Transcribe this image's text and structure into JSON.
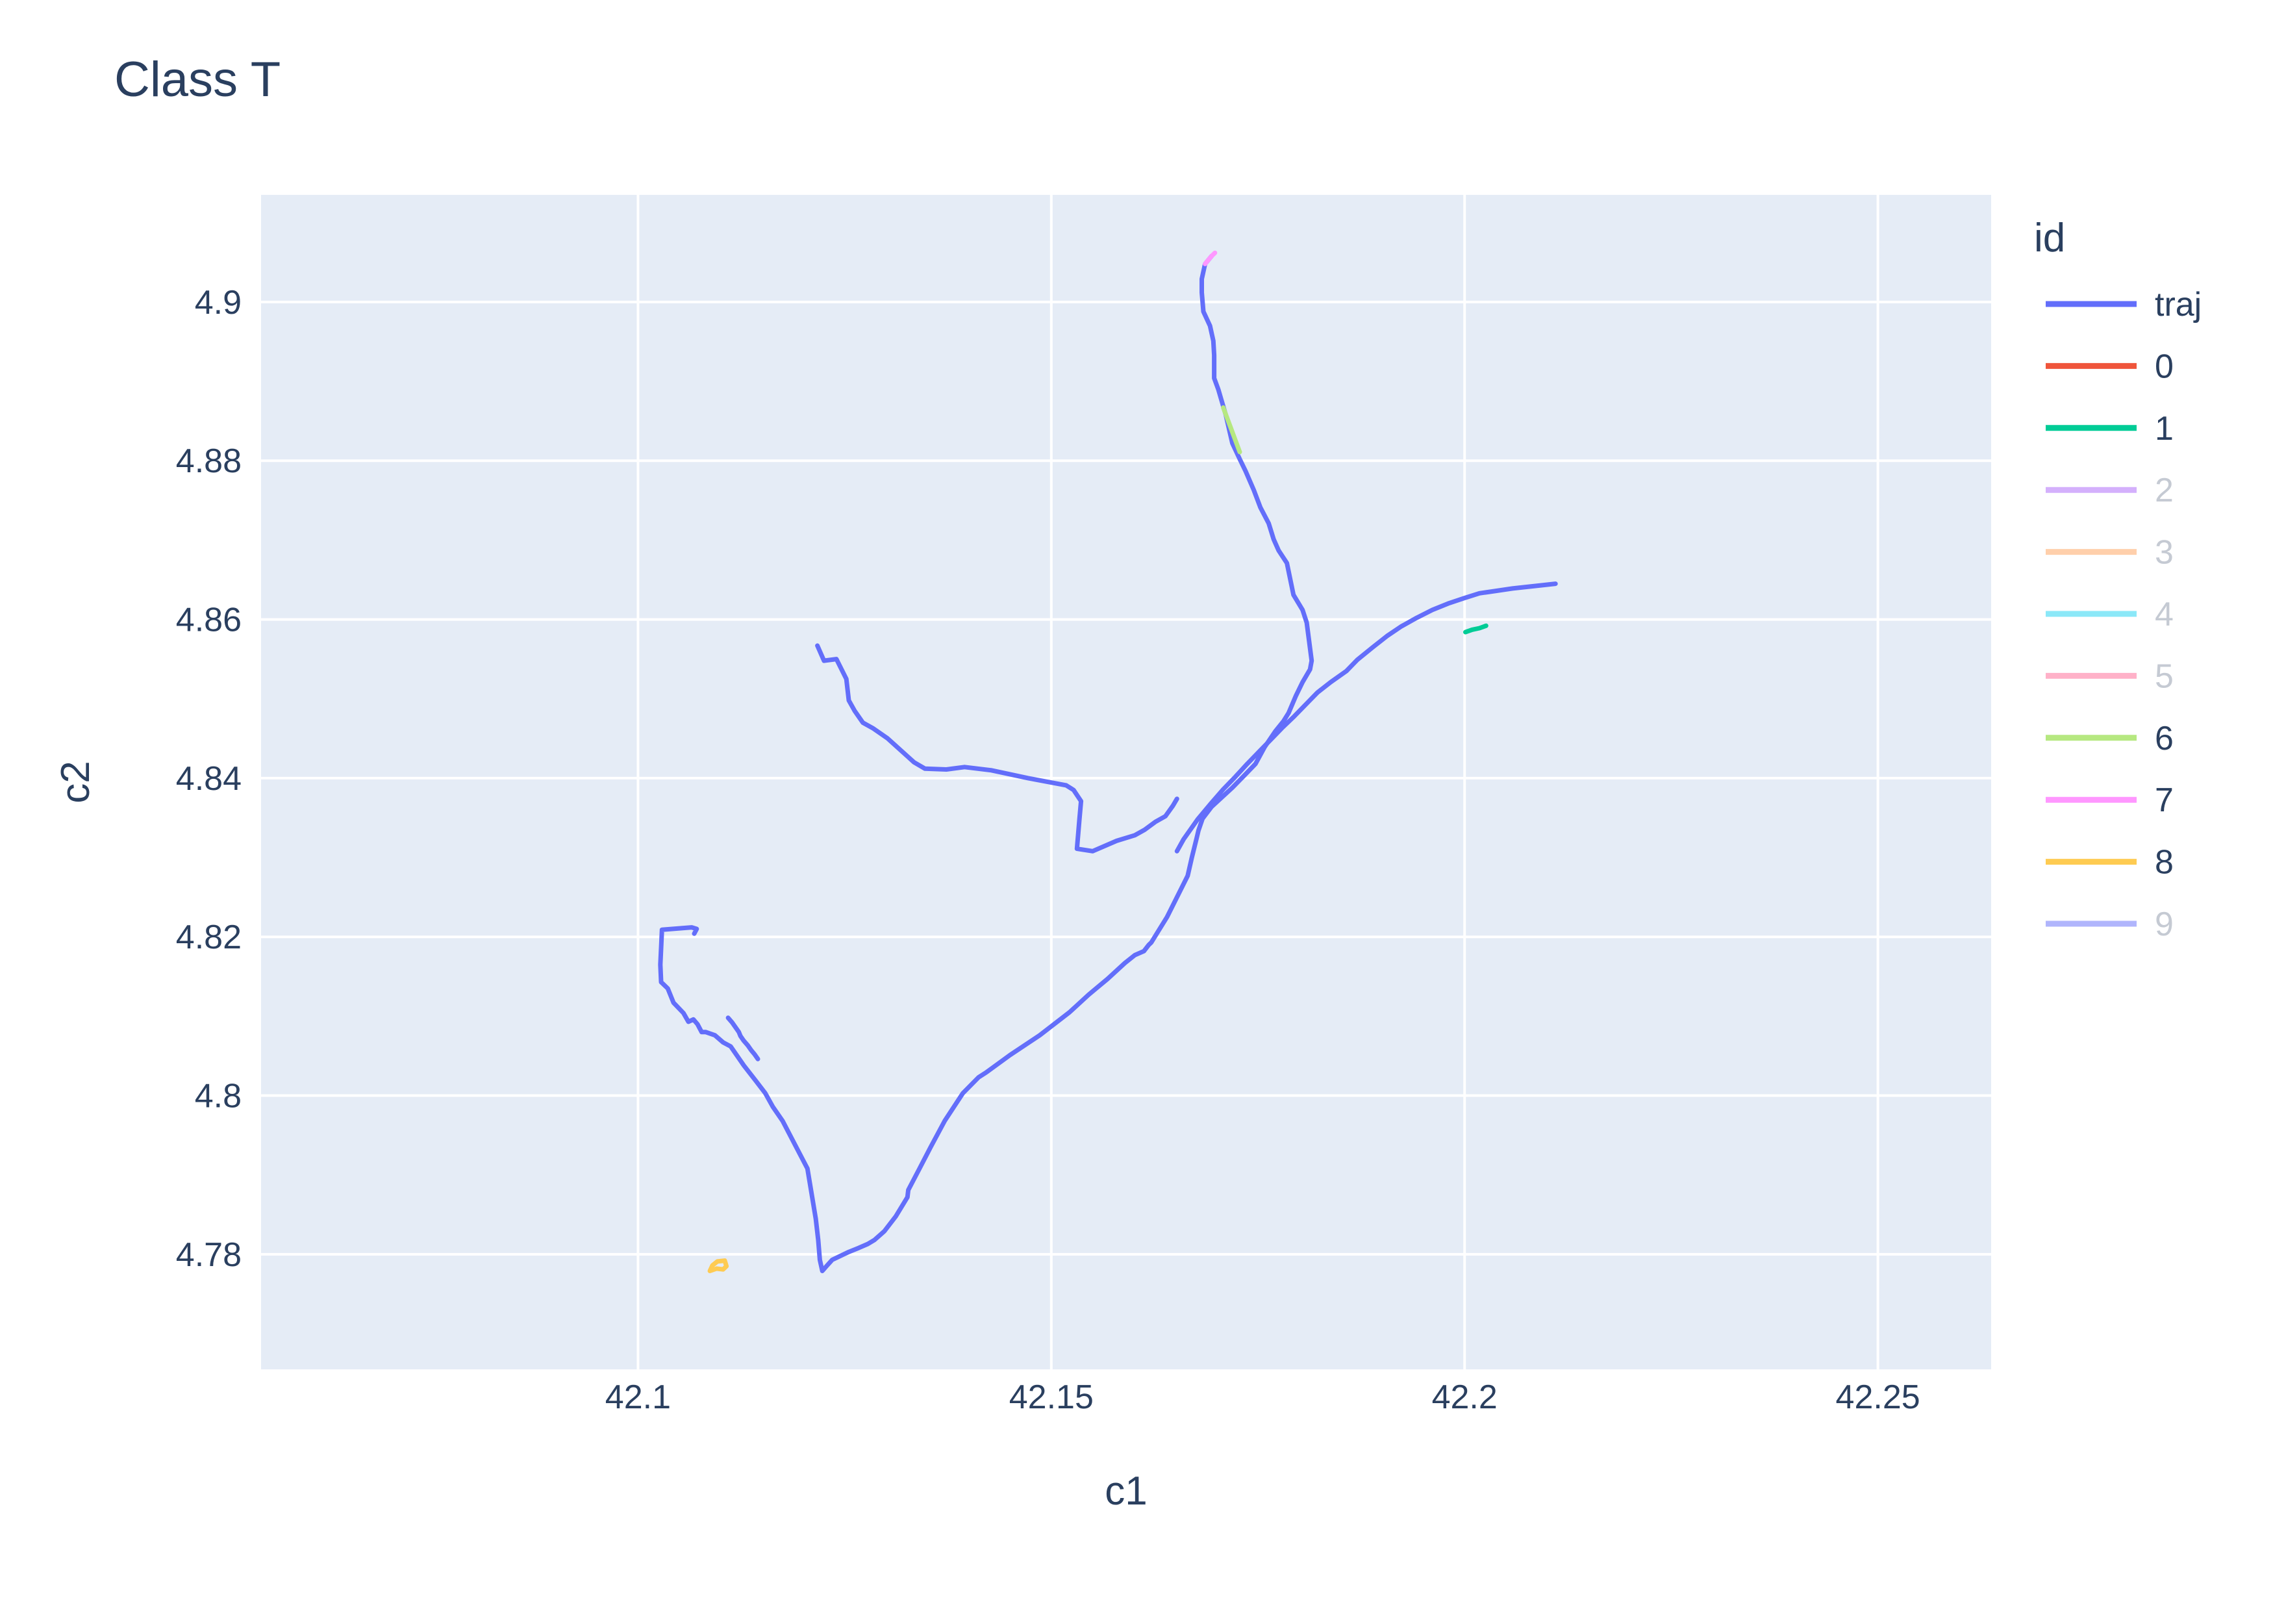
{
  "chart_data": {
    "type": "line",
    "title": "Class T",
    "xlabel": "c1",
    "ylabel": "c2",
    "xlim": [
      42.0544,
      42.2637
    ],
    "ylim": [
      4.7655,
      4.9135
    ],
    "x_ticks": [
      42.1,
      42.15,
      42.2,
      42.25
    ],
    "x_tick_labels": [
      "42.1",
      "42.15",
      "42.2",
      "42.25"
    ],
    "y_ticks": [
      4.78,
      4.8,
      4.82,
      4.84,
      4.86,
      4.88,
      4.9
    ],
    "y_tick_labels": [
      "4.78",
      "4.8",
      "4.82",
      "4.84",
      "4.86",
      "4.88",
      "4.9"
    ],
    "grid": true,
    "plot_bgcolor": "#E5ECF6",
    "legend": {
      "title": "id",
      "placement": "right"
    },
    "series": [
      {
        "name": "traj",
        "color": "#636EFA",
        "visible": true,
        "x": [
          42.1694,
          42.1686,
          42.1682,
          42.1682,
          42.1684,
          42.1692,
          42.1696,
          42.1697,
          42.1697,
          42.1702,
          42.1711,
          42.1719,
          42.1728,
          42.1735,
          42.1745,
          42.1753,
          42.1763,
          42.1769,
          42.1775,
          42.1785,
          42.1793,
          42.1804,
          42.1809,
          42.1815,
          42.1813,
          42.1804,
          42.1796,
          42.1787,
          42.1781,
          42.1771,
          42.1758,
          42.1747,
          42.1735,
          42.1719,
          42.1694,
          42.1683,
          42.1678,
          42.1676,
          42.167,
          42.1665,
          42.164,
          42.1621,
          42.1618,
          42.1612,
          42.1601,
          42.1589,
          42.1568,
          42.1545,
          42.1522,
          42.1486,
          42.145,
          42.1421,
          42.1412,
          42.1393,
          42.1371,
          42.1354,
          42.134,
          42.1327,
          42.1326,
          42.1312,
          42.1298,
          42.1286,
          42.1278,
          42.1267,
          42.1255,
          42.1235,
          42.1228,
          42.1223,
          42.122,
          42.1218,
          42.1215,
          42.1205,
          42.1187,
          42.1175,
          42.1163,
          42.1154,
          42.1143,
          42.1128,
          42.1112,
          42.1103,
          42.1093,
          42.1082,
          42.1077,
          42.1072,
          42.1067,
          42.1061,
          42.1055,
          42.1043,
          42.1036,
          42.1028,
          42.1027,
          42.1029,
          42.1065,
          42.1071,
          42.1068
        ],
        "y": [
          4.9058,
          4.9048,
          4.9029,
          4.9012,
          4.8988,
          4.897,
          4.8951,
          4.8933,
          4.8904,
          4.889,
          4.8858,
          4.8822,
          4.8802,
          4.8787,
          4.8763,
          4.8741,
          4.8721,
          4.8701,
          4.8687,
          4.8671,
          4.8631,
          4.8612,
          4.8596,
          4.8548,
          4.8537,
          4.8521,
          4.8504,
          4.8482,
          4.8472,
          4.8459,
          4.8439,
          4.8418,
          4.8405,
          4.8388,
          4.8364,
          4.8349,
          4.8334,
          4.8325,
          4.83,
          4.8277,
          4.8225,
          4.8193,
          4.819,
          4.8182,
          4.8177,
          4.8167,
          4.8147,
          4.8127,
          4.8105,
          4.8076,
          4.8051,
          4.8029,
          4.8023,
          4.8003,
          4.7968,
          4.7935,
          4.7907,
          4.7881,
          4.7872,
          4.7848,
          4.7829,
          4.7818,
          4.7813,
          4.7808,
          4.7803,
          4.7793,
          4.7785,
          4.7779,
          4.7793,
          4.7818,
          4.7845,
          4.7908,
          4.7944,
          4.7968,
          4.7986,
          4.8003,
          4.8018,
          4.8038,
          4.8062,
          4.8067,
          4.8076,
          4.808,
          4.808,
          4.809,
          4.8096,
          4.8093,
          4.8104,
          4.8117,
          4.8135,
          4.8143,
          4.8165,
          4.8209,
          4.8212,
          4.821,
          4.8204
        ]
      },
      {
        "name": "",
        "color": "#636EFA",
        "visible": true,
        "x": [
          42.1109,
          42.1114,
          42.1118,
          42.1122,
          42.1124,
          42.1128,
          42.1133,
          42.1137,
          42.1141,
          42.1145
        ],
        "y": [
          4.8098,
          4.8092,
          4.8086,
          4.808,
          4.8075,
          4.8069,
          4.8063,
          4.8057,
          4.8052,
          4.8046
        ]
      },
      {
        "name": "",
        "color": "#636EFA",
        "visible": true,
        "x": [
          42.1217,
          42.1225,
          42.124,
          42.1252,
          42.1255,
          42.1262,
          42.1272,
          42.1284,
          42.1302,
          42.1334,
          42.1347,
          42.1373,
          42.1395,
          42.1427,
          42.1472,
          42.1518,
          42.1527,
          42.1536,
          42.1534,
          42.1531,
          42.155,
          42.1579,
          42.1601,
          42.1613,
          42.1626,
          42.1638,
          42.1647,
          42.1652
        ],
        "y": [
          4.8567,
          4.8548,
          4.855,
          4.8525,
          4.8498,
          4.8485,
          4.847,
          4.8463,
          4.845,
          4.842,
          4.8412,
          4.8411,
          4.8414,
          4.841,
          4.84,
          4.8391,
          4.8385,
          4.8371,
          4.8348,
          4.8311,
          4.8308,
          4.8321,
          4.8328,
          4.8335,
          4.8345,
          4.8352,
          4.8365,
          4.8374
        ]
      },
      {
        "name": "",
        "color": "#636EFA",
        "visible": true,
        "x": [
          42.1652,
          42.166,
          42.1677,
          42.1693,
          42.1708,
          42.1723,
          42.1737,
          42.1751,
          42.1765,
          42.1779,
          42.1794,
          42.1808,
          42.1822,
          42.1838,
          42.1857,
          42.187,
          42.1889,
          42.1906,
          42.1923,
          42.1942,
          42.1961,
          42.198,
          42.2,
          42.2018,
          42.2038,
          42.2058,
          42.2075,
          42.2093,
          42.211
        ],
        "y": [
          4.8308,
          4.8323,
          4.8348,
          4.8368,
          4.8386,
          4.8402,
          4.8418,
          4.8433,
          4.8448,
          4.8463,
          4.8478,
          4.8493,
          4.8508,
          4.8521,
          4.8535,
          4.8549,
          4.8565,
          4.8579,
          4.8591,
          4.8602,
          4.8612,
          4.862,
          4.8627,
          4.8633,
          4.8636,
          4.8639,
          4.8641,
          4.8643,
          4.8645
        ]
      },
      {
        "name": "0",
        "color": "#EF553B",
        "visible": true,
        "x": [],
        "y": []
      },
      {
        "name": "1",
        "color": "#00CC96",
        "visible": true,
        "x": [
          42.2001,
          42.2009,
          42.2018,
          42.2026
        ],
        "y": [
          4.8584,
          4.8587,
          4.8589,
          4.8592
        ]
      },
      {
        "name": "2",
        "color": "#AB63FA",
        "visible": false,
        "x": [],
        "y": []
      },
      {
        "name": "3",
        "color": "#FFA15A",
        "visible": false,
        "x": [],
        "y": []
      },
      {
        "name": "4",
        "color": "#19D3F3",
        "visible": false,
        "x": [],
        "y": []
      },
      {
        "name": "5",
        "color": "#FF6692",
        "visible": false,
        "x": [],
        "y": []
      },
      {
        "name": "6",
        "color": "#B6E880",
        "visible": true,
        "x": [
          42.1708,
          42.1713,
          42.1718,
          42.1723,
          42.1728
        ],
        "y": [
          4.8867,
          4.8853,
          4.8839,
          4.8825,
          4.8811
        ]
      },
      {
        "name": "7",
        "color": "#FF97FF",
        "visible": true,
        "x": [
          42.1686,
          42.169,
          42.1694,
          42.1698
        ],
        "y": [
          4.9048,
          4.9053,
          4.9058,
          4.9062
        ]
      },
      {
        "name": "8",
        "color": "#FECB52",
        "visible": true,
        "x": [
          42.1087,
          42.1095,
          42.1103,
          42.1107,
          42.1105,
          42.1096,
          42.109,
          42.1087
        ],
        "y": [
          4.7779,
          4.7782,
          4.7781,
          4.7785,
          4.7792,
          4.7791,
          4.7786,
          4.7779
        ]
      },
      {
        "name": "9",
        "color": "#636EFA",
        "visible": false,
        "x": [],
        "y": []
      }
    ]
  }
}
